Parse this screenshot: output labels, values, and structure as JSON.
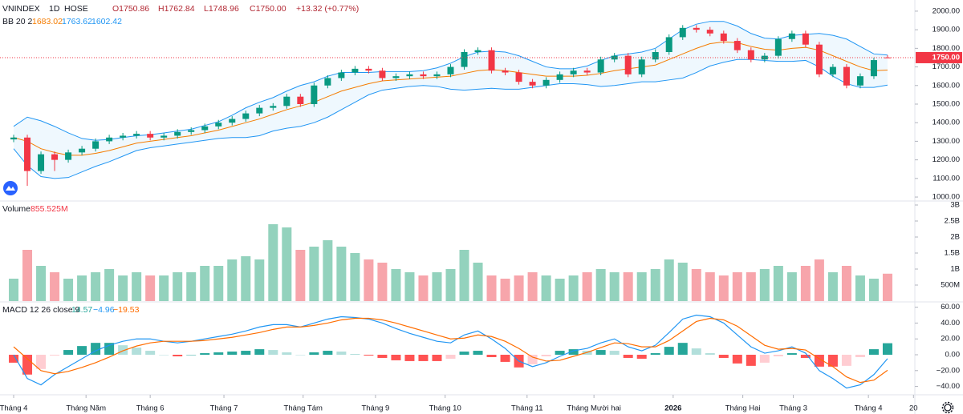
{
  "chart_data": [
    {
      "type": "candlestick",
      "legend": {
        "symbol": "VNINDEX",
        "interval": "1D",
        "exchange": "HOSE",
        "ohlc": [
          "O1750.86",
          "H1762.84",
          "L1748.96",
          "C1750.00",
          "+13.32 (+0.77%)"
        ],
        "bb": "BB 20 2"
      },
      "x": [
        0,
        1,
        2,
        3,
        4,
        5,
        6,
        7,
        8,
        9,
        10,
        11,
        12,
        13,
        14,
        15,
        16,
        17,
        18,
        19,
        20,
        21,
        22,
        23,
        24,
        25,
        26,
        27,
        28,
        29,
        30,
        31,
        32,
        33,
        34,
        35,
        36,
        37,
        38,
        39,
        40,
        41,
        42,
        43,
        44,
        45,
        46,
        47,
        48,
        49,
        50,
        51,
        52,
        53,
        54,
        55,
        56,
        57,
        58,
        59,
        60,
        61,
        62,
        63,
        64
      ],
      "open": [
        1310,
        1320,
        1140,
        1230,
        1200,
        1240,
        1260,
        1300,
        1320,
        1330,
        1340,
        1320,
        1330,
        1350,
        1360,
        1380,
        1400,
        1420,
        1450,
        1480,
        1490,
        1540,
        1500,
        1600,
        1640,
        1670,
        1690,
        1680,
        1640,
        1650,
        1660,
        1650,
        1660,
        1700,
        1780,
        1790,
        1680,
        1670,
        1620,
        1600,
        1630,
        1660,
        1680,
        1670,
        1740,
        1760,
        1660,
        1740,
        1780,
        1860,
        1910,
        1900,
        1880,
        1840,
        1790,
        1740,
        1760,
        1850,
        1880,
        1820,
        1660,
        1700,
        1600,
        1650,
        1750.86
      ],
      "high": [
        1335,
        1335,
        1245,
        1245,
        1255,
        1275,
        1315,
        1335,
        1345,
        1355,
        1355,
        1345,
        1365,
        1375,
        1395,
        1415,
        1435,
        1465,
        1495,
        1505,
        1555,
        1555,
        1615,
        1655,
        1685,
        1705,
        1705,
        1695,
        1665,
        1675,
        1675,
        1675,
        1715,
        1795,
        1805,
        1805,
        1695,
        1685,
        1635,
        1645,
        1675,
        1695,
        1695,
        1755,
        1775,
        1775,
        1755,
        1795,
        1875,
        1925,
        1925,
        1915,
        1895,
        1855,
        1805,
        1775,
        1865,
        1895,
        1895,
        1835,
        1715,
        1715,
        1665,
        1750,
        1762.84
      ],
      "low": [
        1295,
        1060,
        1125,
        1140,
        1185,
        1225,
        1245,
        1285,
        1305,
        1315,
        1305,
        1305,
        1315,
        1335,
        1345,
        1365,
        1385,
        1405,
        1435,
        1465,
        1475,
        1485,
        1485,
        1585,
        1625,
        1655,
        1665,
        1625,
        1625,
        1635,
        1635,
        1635,
        1645,
        1685,
        1765,
        1665,
        1655,
        1605,
        1585,
        1585,
        1615,
        1645,
        1655,
        1655,
        1725,
        1645,
        1645,
        1725,
        1765,
        1845,
        1885,
        1865,
        1825,
        1775,
        1725,
        1725,
        1745,
        1835,
        1805,
        1645,
        1645,
        1585,
        1585,
        1635,
        1748.96
      ],
      "close": [
        1320,
        1140,
        1230,
        1200,
        1240,
        1260,
        1300,
        1320,
        1330,
        1340,
        1320,
        1330,
        1350,
        1360,
        1380,
        1400,
        1420,
        1450,
        1480,
        1490,
        1540,
        1500,
        1600,
        1640,
        1670,
        1690,
        1680,
        1640,
        1650,
        1660,
        1650,
        1660,
        1700,
        1780,
        1790,
        1680,
        1670,
        1620,
        1600,
        1630,
        1660,
        1680,
        1670,
        1740,
        1760,
        1660,
        1740,
        1780,
        1860,
        1910,
        1900,
        1880,
        1840,
        1790,
        1740,
        1760,
        1850,
        1880,
        1820,
        1660,
        1700,
        1600,
        1650,
        1736.68,
        1750
      ],
      "up_color": "#089981",
      "down_color": "#f23645",
      "bollinger": [
        {
          "color": "#f57c00",
          "values": [
            1320,
            1300,
            1260,
            1240,
            1225,
            1225,
            1235,
            1250,
            1270,
            1290,
            1300,
            1310,
            1320,
            1330,
            1345,
            1360,
            1380,
            1400,
            1420,
            1445,
            1470,
            1490,
            1510,
            1540,
            1570,
            1590,
            1610,
            1625,
            1630,
            1635,
            1640,
            1645,
            1650,
            1665,
            1680,
            1685,
            1680,
            1670,
            1660,
            1650,
            1650,
            1650,
            1655,
            1665,
            1680,
            1690,
            1700,
            1710,
            1740,
            1770,
            1800,
            1825,
            1835,
            1830,
            1810,
            1795,
            1790,
            1800,
            1805,
            1790,
            1760,
            1730,
            1700,
            1680,
            1683.02
          ]
        },
        {
          "color": "#2196f3",
          "values": [
            1380,
            1430,
            1410,
            1380,
            1345,
            1315,
            1305,
            1310,
            1320,
            1330,
            1335,
            1345,
            1355,
            1365,
            1385,
            1405,
            1440,
            1480,
            1510,
            1535,
            1570,
            1600,
            1620,
            1650,
            1670,
            1670,
            1670,
            1675,
            1675,
            1675,
            1680,
            1695,
            1720,
            1755,
            1780,
            1785,
            1780,
            1760,
            1730,
            1700,
            1690,
            1690,
            1705,
            1735,
            1760,
            1770,
            1780,
            1800,
            1850,
            1900,
            1930,
            1945,
            1945,
            1920,
            1880,
            1855,
            1850,
            1870,
            1875,
            1880,
            1870,
            1850,
            1810,
            1770,
            1763.62
          ]
        },
        {
          "color": "#2196f3",
          "values": [
            1260,
            1170,
            1110,
            1100,
            1105,
            1135,
            1165,
            1190,
            1220,
            1250,
            1265,
            1275,
            1285,
            1295,
            1305,
            1315,
            1320,
            1320,
            1330,
            1355,
            1370,
            1380,
            1400,
            1430,
            1470,
            1510,
            1550,
            1575,
            1585,
            1595,
            1600,
            1595,
            1580,
            1575,
            1580,
            1585,
            1580,
            1580,
            1590,
            1600,
            1610,
            1610,
            1605,
            1595,
            1600,
            1610,
            1620,
            1620,
            1630,
            1640,
            1670,
            1705,
            1725,
            1740,
            1740,
            1735,
            1730,
            1730,
            1735,
            1700,
            1650,
            1610,
            1590,
            1590,
            1602.42
          ]
        }
      ],
      "band_fill": "#2196f3",
      "last_price": {
        "value": 1750,
        "label": "1750.00"
      },
      "xlim": [
        -1,
        66
      ],
      "ylim": [
        983,
        2060
      ],
      "yticks": [
        {
          "value": 1000,
          "label": "1000.00"
        },
        {
          "value": 1100,
          "label": "1100.00"
        },
        {
          "value": 1200,
          "label": "1200.00"
        },
        {
          "value": 1300,
          "label": "1300.00"
        },
        {
          "value": 1400,
          "label": "1400.00"
        },
        {
          "value": 1500,
          "label": "1500.00"
        },
        {
          "value": 1600,
          "label": "1600.00"
        },
        {
          "value": 1700,
          "label": "1700.00"
        },
        {
          "value": 1800,
          "label": "1800.00"
        },
        {
          "value": 1900,
          "label": "1900.00"
        },
        {
          "value": 2000,
          "label": "2000.00"
        }
      ]
    },
    {
      "type": "volume",
      "name": "Volume",
      "label": "855.525M",
      "x": [
        0,
        1,
        2,
        3,
        4,
        5,
        6,
        7,
        8,
        9,
        10,
        11,
        12,
        13,
        14,
        15,
        16,
        17,
        18,
        19,
        20,
        21,
        22,
        23,
        24,
        25,
        26,
        27,
        28,
        29,
        30,
        31,
        32,
        33,
        34,
        35,
        36,
        37,
        38,
        39,
        40,
        41,
        42,
        43,
        44,
        45,
        46,
        47,
        48,
        49,
        50,
        51,
        52,
        53,
        54,
        55,
        56,
        57,
        58,
        59,
        60,
        61,
        62,
        63,
        64
      ],
      "values": [
        700000000,
        1600000000,
        1100000000,
        900000000,
        700000000,
        800000000,
        900000000,
        1000000000,
        800000000,
        900000000,
        800000000,
        800000000,
        900000000,
        900000000,
        1100000000,
        1100000000,
        1300000000,
        1400000000,
        1300000000,
        2400000000,
        2300000000,
        1600000000,
        1700000000,
        1900000000,
        1700000000,
        1500000000,
        1300000000,
        1200000000,
        1000000000,
        900000000,
        800000000,
        900000000,
        1000000000,
        1600000000,
        1200000000,
        800000000,
        700000000,
        800000000,
        900000000,
        800000000,
        700000000,
        800000000,
        900000000,
        1000000000,
        900000000,
        900000000,
        900000000,
        1000000000,
        1300000000,
        1200000000,
        1000000000,
        900000000,
        800000000,
        900000000,
        900000000,
        1000000000,
        1100000000,
        900000000,
        1100000000,
        1300000000,
        900000000,
        1100000000,
        800000000,
        700000000,
        855525000
      ],
      "up_color": "#93d2bd",
      "down_color": "#f7a5ab",
      "xlim": [
        -1,
        66
      ],
      "ylim": [
        0,
        3100000000
      ],
      "yticks": [
        {
          "value": 500000000,
          "label": "500M"
        },
        {
          "value": 1000000000,
          "label": "1B"
        },
        {
          "value": 1500000000,
          "label": "1.5B"
        },
        {
          "value": 2000000000,
          "label": "2B"
        },
        {
          "value": 2500000000,
          "label": "2.5B"
        },
        {
          "value": 3000000000,
          "label": "3B"
        }
      ]
    },
    {
      "type": "macd",
      "name": "MACD 12 26 close 9",
      "legend_values": [
        "14.57",
        "−4.96",
        "−19.53"
      ],
      "x": [
        0,
        1,
        2,
        3,
        4,
        5,
        6,
        7,
        8,
        9,
        10,
        11,
        12,
        13,
        14,
        15,
        16,
        17,
        18,
        19,
        20,
        21,
        22,
        23,
        24,
        25,
        26,
        27,
        28,
        29,
        30,
        31,
        32,
        33,
        34,
        35,
        36,
        37,
        38,
        39,
        40,
        41,
        42,
        43,
        44,
        45,
        46,
        47,
        48,
        49,
        50,
        51,
        52,
        53,
        54,
        55,
        56,
        57,
        58,
        59,
        60,
        61,
        62,
        63,
        64
      ],
      "histogram": [
        -10,
        -25,
        -18,
        -1,
        6,
        11,
        15,
        15,
        12,
        9,
        5,
        0,
        -2,
        0,
        2,
        3,
        4,
        5,
        7,
        6,
        3,
        0,
        3,
        5,
        4,
        1,
        -1,
        -4,
        -7,
        -8,
        -8,
        -8,
        -5,
        4,
        5,
        -3,
        -9,
        -16,
        -12,
        -2,
        5,
        7,
        5,
        6,
        5,
        -4,
        -5,
        2,
        10,
        15,
        8,
        2,
        -4,
        -11,
        -14,
        -10,
        -2,
        2,
        -4,
        -15,
        -15,
        -14,
        -3,
        7,
        14.57
      ],
      "hist_colors": {
        "pos_up": "#26a69a",
        "pos_down": "#b2dfdb",
        "neg_down": "#ff5252",
        "neg_up": "#ffcdd2"
      },
      "series": [
        {
          "color": "#2196f3",
          "values": [
            0,
            -30,
            -38,
            -25,
            -15,
            -5,
            5,
            12,
            17,
            20,
            20,
            17,
            15,
            17,
            20,
            23,
            26,
            30,
            35,
            38,
            38,
            35,
            40,
            45,
            48,
            47,
            45,
            40,
            33,
            27,
            22,
            17,
            15,
            25,
            30,
            20,
            8,
            -8,
            -15,
            -10,
            -2,
            5,
            8,
            15,
            20,
            10,
            5,
            12,
            28,
            45,
            50,
            48,
            40,
            25,
            10,
            2,
            5,
            10,
            2,
            -20,
            -30,
            -42,
            -38,
            -25,
            -4.96
          ]
        },
        {
          "color": "#ff6d00",
          "values": [
            10,
            -5,
            -20,
            -24,
            -21,
            -16,
            -10,
            -3,
            5,
            11,
            15,
            17,
            17,
            17,
            18,
            20,
            22,
            25,
            28,
            32,
            35,
            35,
            37,
            40,
            44,
            46,
            46,
            44,
            40,
            35,
            30,
            25,
            20,
            21,
            25,
            23,
            17,
            8,
            -3,
            -8,
            -7,
            -2,
            3,
            9,
            15,
            14,
            10,
            10,
            18,
            30,
            42,
            46,
            44,
            36,
            24,
            12,
            7,
            8,
            6,
            -5,
            -15,
            -28,
            -35,
            -32,
            -19.53
          ]
        }
      ],
      "xlim": [
        -1,
        66
      ],
      "ylim": [
        -49.5,
        65.7
      ],
      "yticks": [
        {
          "value": -40,
          "label": "−40.00"
        },
        {
          "value": -20,
          "label": "−20.00"
        },
        {
          "value": 0,
          "label": "0.00"
        },
        {
          "value": 20,
          "label": "20.00"
        },
        {
          "value": 40,
          "label": "40.00"
        },
        {
          "value": 60,
          "label": "60.00"
        }
      ],
      "xticks": [
        {
          "value": 0,
          "label": "Tháng 4"
        },
        {
          "value": 5.3,
          "label": "Tháng Năm"
        },
        {
          "value": 10,
          "label": "Tháng 6"
        },
        {
          "value": 15.4,
          "label": "Tháng 7"
        },
        {
          "value": 21.2,
          "label": "Tháng Tám"
        },
        {
          "value": 26.5,
          "label": "Tháng 9"
        },
        {
          "value": 31.6,
          "label": "Tháng 10"
        },
        {
          "value": 37.6,
          "label": "Tháng 11"
        },
        {
          "value": 42.5,
          "label": "Tháng Mười hai"
        },
        {
          "value": 48.3,
          "label": "2026"
        },
        {
          "value": 53.4,
          "label": "Tháng Hai"
        },
        {
          "value": 57.1,
          "label": "Tháng 3"
        },
        {
          "value": 62.6,
          "label": "Tháng 4"
        },
        {
          "value": 65.9,
          "label": "20"
        }
      ]
    }
  ]
}
